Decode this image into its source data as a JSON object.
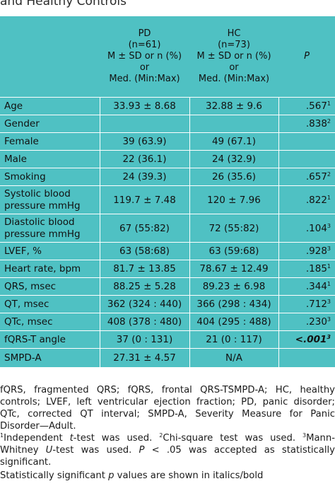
{
  "title": "and Healthy Controls",
  "header": {
    "pd": [
      "PD",
      "(n=61)",
      "M ± SD or n (%)",
      "or",
      "Med. (Min:Max)"
    ],
    "hc": [
      "HC",
      "(n=73)",
      "M ± SD or n (%)",
      "or",
      "Med. (Min:Max)"
    ],
    "p": "P"
  },
  "rows": [
    {
      "label": "Age",
      "pd": "33.93 ± 8.68",
      "hc": "32.88 ± 9.6",
      "p": ".567",
      "sup": "1"
    },
    {
      "label": "Gender",
      "pd": "",
      "hc": "",
      "p": ".838",
      "sup": "2"
    },
    {
      "label": "Female",
      "pd": "39 (63.9)",
      "hc": "49 (67.1)",
      "p": "",
      "sup": ""
    },
    {
      "label": "Male",
      "pd": "22 (36.1)",
      "hc": "24 (32.9)",
      "p": "",
      "sup": ""
    },
    {
      "label": "Smoking",
      "pd": "24 (39.3)",
      "hc": "26 (35.6)",
      "p": ".657",
      "sup": "2"
    },
    {
      "label": "Systolic blood pressure mmHg",
      "pd": "119.7 ± 7.48",
      "hc": "120 ± 7.96",
      "p": ".822",
      "sup": "1"
    },
    {
      "label": "Diastolic blood pressure mmHg",
      "pd": "67 (55:82)",
      "hc": "72 (55:82)",
      "p": ".104",
      "sup": "3"
    },
    {
      "label": "LVEF, %",
      "pd": "63 (58:68)",
      "hc": "63 (59:68)",
      "p": ".928",
      "sup": "3"
    },
    {
      "label": "Heart rate, bpm",
      "pd": "81.7 ± 13.85",
      "hc": "78.67 ± 12.49",
      "p": ".185",
      "sup": "1"
    },
    {
      "label": "QRS, msec",
      "pd": "88.25 ± 5.28",
      "hc": "89.23 ± 6.98",
      "p": ".344",
      "sup": "1"
    },
    {
      "label": "QT, msec",
      "pd": "362 (324 : 440)",
      "hc": "366 (298 : 434)",
      "p": ".712",
      "sup": "3"
    },
    {
      "label": "QTc, msec",
      "pd": "408 (378 : 480)",
      "hc": "404 (295 : 488)",
      "p": ".230",
      "sup": "3"
    },
    {
      "label": "fQRS-T angle",
      "pd": "37 (0 : 131)",
      "hc": "21 (0 : 117)",
      "p": "<.001",
      "sup": "3",
      "emph": true
    },
    {
      "label": "SMPD-A",
      "pd": "27.31 ± 4.57",
      "hc": "N/A",
      "p": "",
      "sup": ""
    }
  ],
  "notes": {
    "abbrev": "fQRS, fragmented QRS; fQRS, frontal QRS-TSMPD-A; HC, healthy controls; LVEF, left ventricular ejection fraction; PD, panic disorder; QTc, corrected QT interval; SMPD-A, Severity Measure for Panic Disorder—Adult.",
    "tests": {
      "sup1": "1",
      "t_prefix": "Independent ",
      "t_italic": "t",
      "t_rest": "-test was used. ",
      "sup2": "2",
      "chi": "Chi-square test was used. ",
      "sup3": "3",
      "mw_prefix": "Mann-Whitney ",
      "u_italic": "U",
      "mw_rest": "-test was used. ",
      "p_italic": "P",
      "p_rest": " < .05 was accepted as statistically significant."
    },
    "sig_prefix": "Statistically significant ",
    "sig_italic": "p",
    "sig_rest": " values are shown in italics/bold"
  }
}
